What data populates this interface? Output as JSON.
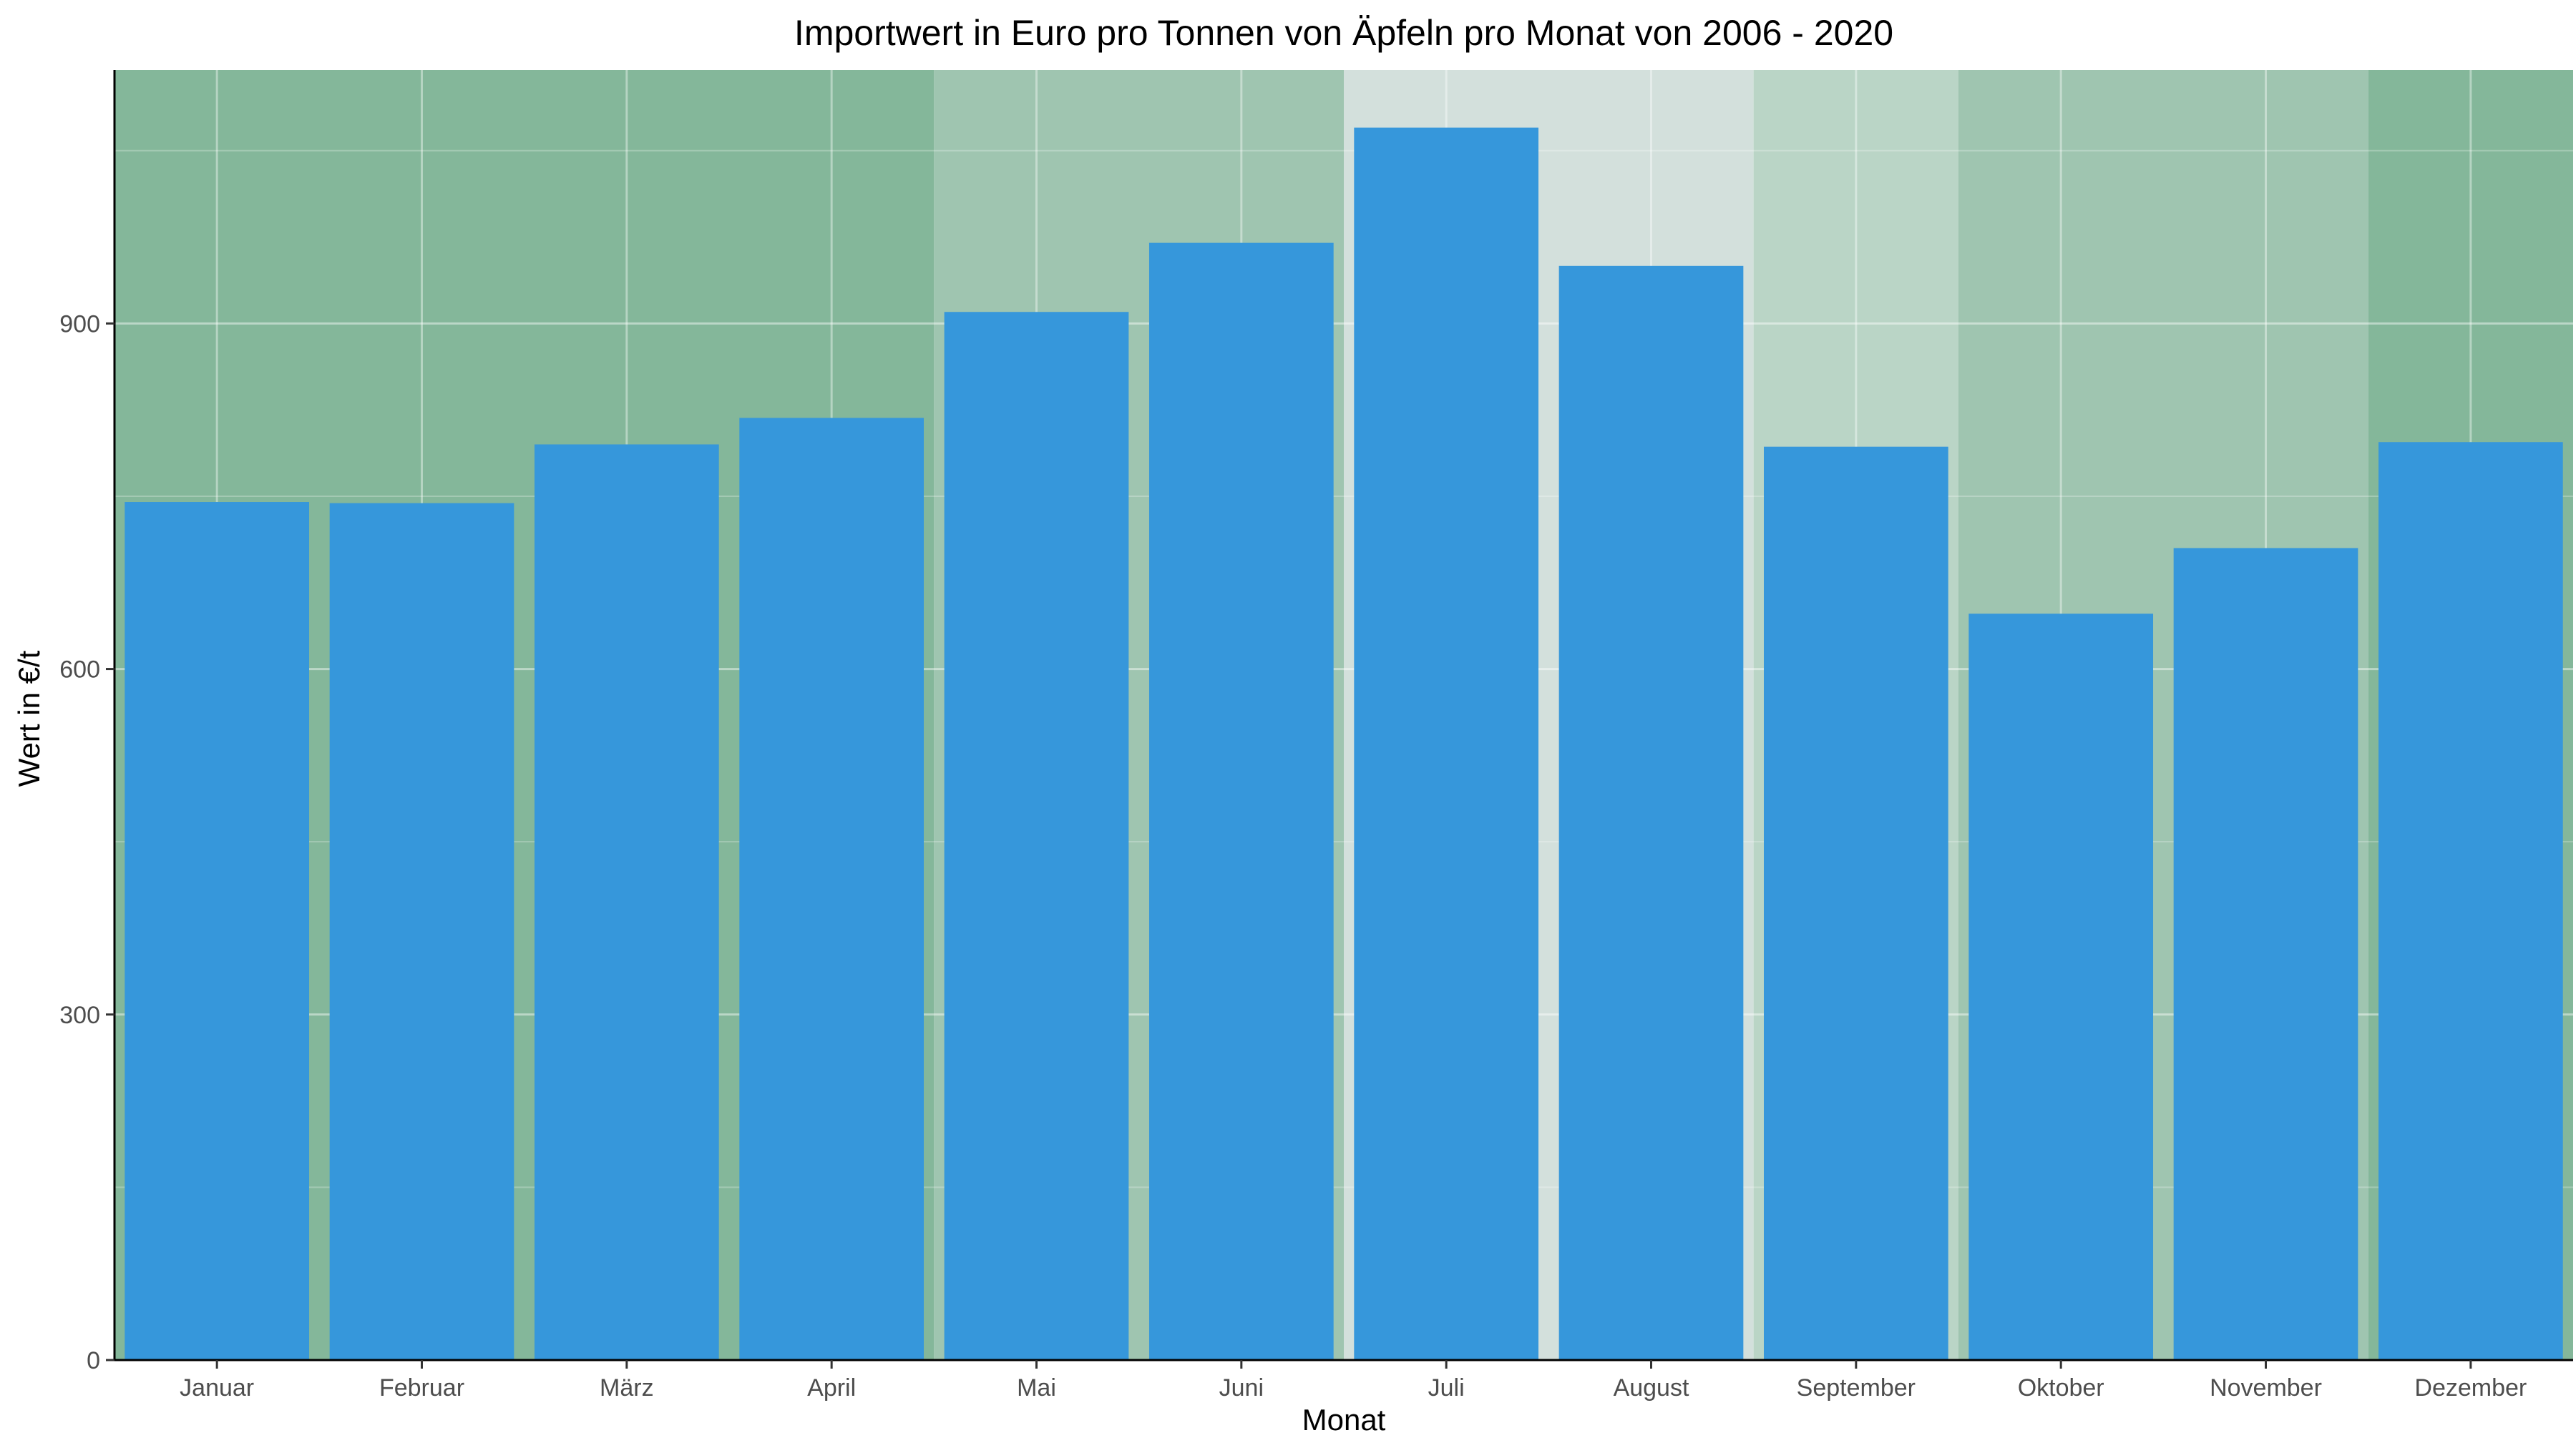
{
  "chart_data": {
    "type": "bar",
    "title": "Importwert in Euro pro Tonnen von Äpfeln pro Monat von 2006 - 2020",
    "xlabel": "Monat",
    "ylabel": "Wert in €/t",
    "categories": [
      "Januar",
      "Februar",
      "März",
      "April",
      "Mai",
      "Juni",
      "Juli",
      "August",
      "September",
      "Oktober",
      "November",
      "Dezember"
    ],
    "values": [
      745,
      744,
      795,
      818,
      910,
      970,
      1070,
      950,
      793,
      648,
      705,
      797
    ],
    "ylim": [
      0,
      1120
    ],
    "yticks": [
      0,
      300,
      600,
      900
    ],
    "grid": true,
    "legend": "none",
    "bar_color": "#3697db",
    "background_bands": [
      {
        "from": "Januar",
        "to": "April",
        "color": "#84b79a"
      },
      {
        "from": "Mai",
        "to": "Juni",
        "color": "#9fc5b0"
      },
      {
        "from": "Juli",
        "to": "August",
        "color": "#d3e0dc"
      },
      {
        "from": "September",
        "to": "September",
        "color": "#bad5c6"
      },
      {
        "from": "Oktober",
        "to": "November",
        "color": "#9fc5b0"
      },
      {
        "from": "Dezember",
        "to": "Dezember",
        "color": "#84b79a"
      }
    ]
  }
}
